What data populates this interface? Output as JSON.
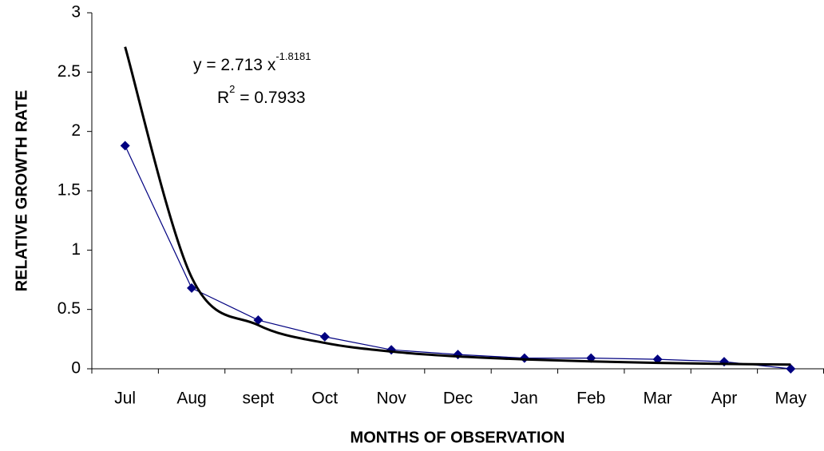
{
  "chart_data": {
    "type": "line",
    "x_label": "MONTHS OF OBSERVATION",
    "y_label": "RELATIVE GROWTH RATE",
    "categories": [
      "Jul",
      "Aug",
      "sept",
      "Oct",
      "Nov",
      "Dec",
      "Jan",
      "Feb",
      "Mar",
      "Apr",
      "May"
    ],
    "series": [
      {
        "color": "#000080",
        "marker": "diamond",
        "values": [
          1.88,
          0.68,
          0.41,
          0.27,
          0.16,
          0.12,
          0.09,
          0.09,
          0.08,
          0.06,
          0.0
        ]
      },
      {
        "color": "#000000",
        "trendline": "power",
        "values": [
          2.713,
          0.77,
          0.368,
          0.218,
          0.145,
          0.104,
          0.079,
          0.062,
          0.05,
          0.041,
          0.035
        ]
      }
    ],
    "equation": {
      "text": "y = 2.713 x",
      "exponent": "-1.8181"
    },
    "r_squared": {
      "text": "R",
      "superscript": "2",
      "rest": " = 0.7933"
    },
    "ylim": [
      0,
      3
    ],
    "yticks": [
      0,
      0.5,
      1,
      1.5,
      2,
      2.5,
      3
    ]
  }
}
